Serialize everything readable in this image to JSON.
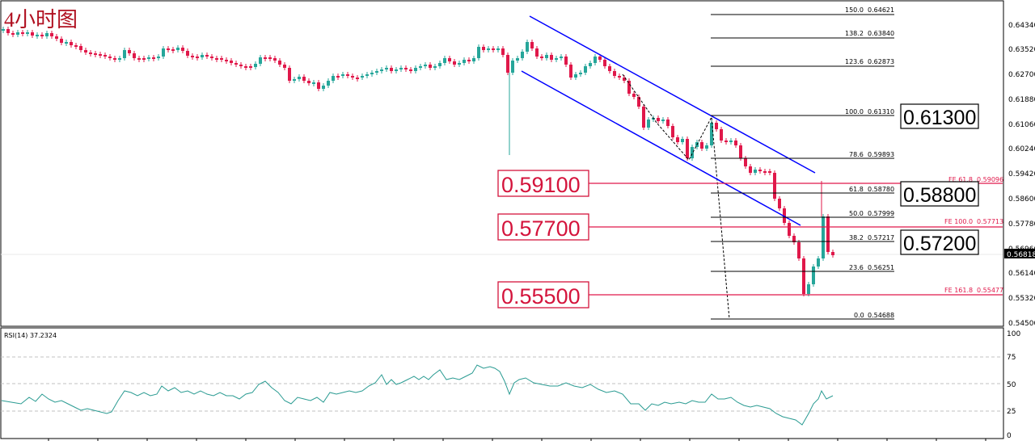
{
  "window": {
    "title": "4小时图",
    "current_price": "0.56818"
  },
  "colors": {
    "bull": "#26a69a",
    "bear": "#e0184a",
    "channel": "#0000ff",
    "fib": "#000000",
    "fe": "#e0184a",
    "label_red": "#d4143c",
    "rsi_line": "#2a9b92",
    "grid": "#c0c0c0"
  },
  "chart_data": [
    {
      "type": "candlestick",
      "title": "4小时图",
      "ylim": [
        0.545,
        0.6474
      ],
      "y_ticks": [
        "0.64340",
        "0.63520",
        "0.62700",
        "0.61880",
        "0.61060",
        "0.60240",
        "0.59420",
        "0.58600",
        "0.57780",
        "0.56960",
        "0.56140",
        "0.55320",
        "0.54500"
      ],
      "channel": {
        "upper": [
          [
            655,
            20
          ],
          [
            1008,
            214
          ]
        ],
        "lower": [
          [
            645,
            88
          ],
          [
            990,
            279
          ]
        ]
      },
      "fib_retracement": [
        {
          "label": "150.0",
          "value": "0.64621"
        },
        {
          "label": "138.2",
          "value": "0.63840"
        },
        {
          "label": "123.6",
          "value": "0.62873"
        },
        {
          "label": "100.0",
          "value": "0.61310"
        },
        {
          "label": "78.6",
          "value": "0.59893"
        },
        {
          "label": "61.8",
          "value": "0.58780"
        },
        {
          "label": "50.0",
          "value": "0.57999"
        },
        {
          "label": "38.2",
          "value": "0.57217"
        },
        {
          "label": "23.6",
          "value": "0.56251"
        },
        {
          "label": "0.0",
          "value": "0.54688"
        }
      ],
      "fib_expansion": [
        {
          "label": "FE 61.8",
          "value": "0.59096"
        },
        {
          "label": "FE 100.0",
          "value": "0.57713"
        },
        {
          "label": "FE 161.8",
          "value": "0.55477"
        }
      ],
      "resistance_labels": [
        "0.61300",
        "0.58800",
        "0.57200"
      ],
      "support_labels": [
        "0.59100",
        "0.57700",
        "0.55500"
      ]
    },
    {
      "type": "line",
      "title": "RSI(14) 37.2324",
      "ylim": [
        0,
        100
      ],
      "y_ticks": [
        "100",
        "75",
        "50",
        "25",
        "0"
      ]
    }
  ]
}
